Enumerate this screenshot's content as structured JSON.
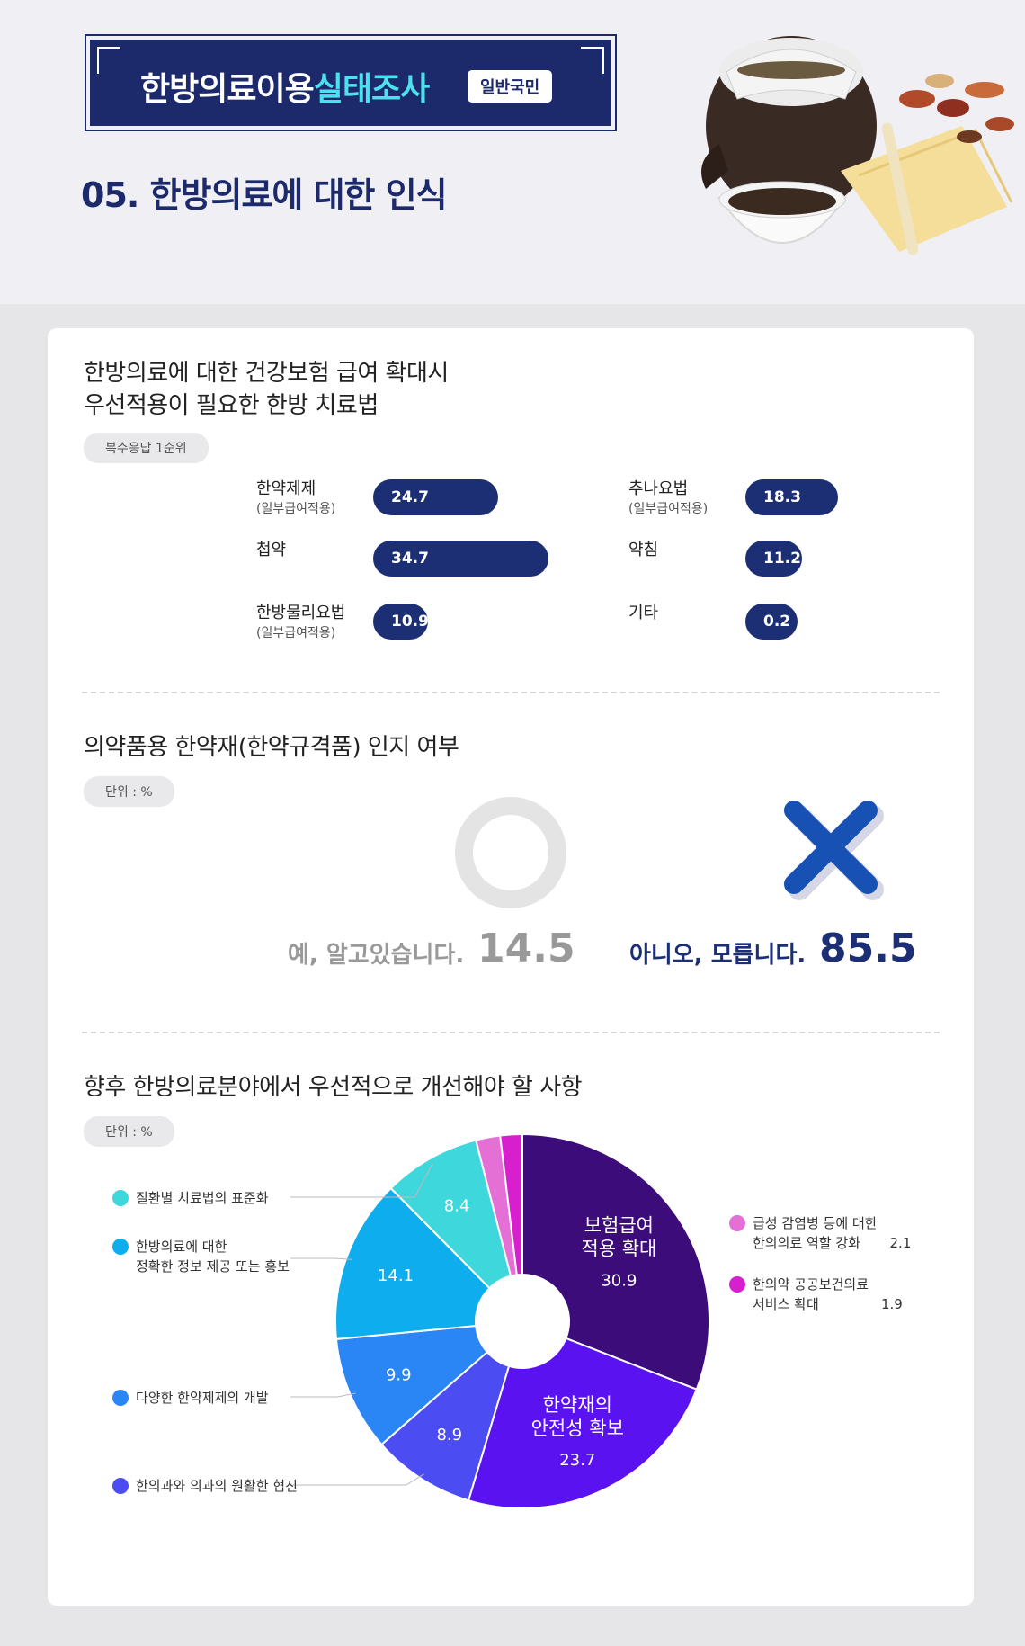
{
  "header": {
    "title_main": "한방의료이용",
    "title_accent": "실태조사",
    "title_tag": "일반국민",
    "section": "05. 한방의료에 대한 인식"
  },
  "colors": {
    "navy": "#1c2a6b",
    "accent": "#4de0ee",
    "bar": "#1c2f74",
    "yes_gray": "#999999",
    "no_blue": "#1c2f74"
  },
  "icons": [
    "circle-o-icon",
    "x-mark-icon"
  ],
  "chart_data": [
    {
      "type": "bar",
      "title_lines": [
        "한방의료에 대한 건강보험 급여 확대시",
        "우선적용이 필요한 한방 치료법"
      ],
      "pill": "복수응답 1순위",
      "xlim": [
        0,
        50
      ],
      "bars": [
        {
          "name": "한약제제",
          "sub": "(일부급여적용)",
          "value": 24.7,
          "label": "24.7"
        },
        {
          "name": "첩약",
          "sub": "",
          "value": 34.7,
          "label": "34.7"
        },
        {
          "name": "한방물리요법",
          "sub": "(일부급여적용)",
          "value": 10.9,
          "label": "10.9"
        },
        {
          "name": "추나요법",
          "sub": "(일부급여적용)",
          "value": 18.3,
          "label": "18.3"
        },
        {
          "name": "약침",
          "sub": "",
          "value": 11.2,
          "label": "11.2"
        },
        {
          "name": "기타",
          "sub": "",
          "value": 0.2,
          "label": "0.2"
        }
      ]
    },
    {
      "type": "table",
      "title": "의약품용 한약재(한약규격품) 인지 여부",
      "unit": "단위 : %",
      "yes": {
        "label": "예, 알고있습니다.",
        "value": "14.5"
      },
      "no": {
        "label": "아니오, 모릅니다.",
        "value": "85.5"
      }
    },
    {
      "type": "pie",
      "title": "향후 한방의료분야에서 우선적으로 개선해야 할 사항",
      "unit": "단위 : %",
      "slices": [
        {
          "name": "보험급여 적용 확대",
          "inner_lines": [
            "보험급여",
            "적용 확대"
          ],
          "value": 30.9,
          "label": "30.9",
          "color": "#3c0d7a"
        },
        {
          "name": "한약재의 안전성 확보",
          "inner_lines": [
            "한약재의",
            "안전성 확보"
          ],
          "value": 23.7,
          "label": "23.7",
          "color": "#5b12f0"
        },
        {
          "name": "한의과와 의과의 원활한 협진",
          "inner_lines": [],
          "value": 8.9,
          "label": "8.9",
          "color": "#4b4cf2"
        },
        {
          "name": "다양한 한약제제의 개발",
          "inner_lines": [],
          "value": 9.9,
          "label": "9.9",
          "color": "#2a86f5"
        },
        {
          "name": "한방의료에 대한\n정확한 정보 제공 또는 홍보",
          "inner_lines": [],
          "value": 14.1,
          "label": "14.1",
          "color": "#0eaeee"
        },
        {
          "name": "질환별 치료법의 표준화",
          "inner_lines": [],
          "value": 8.4,
          "label": "8.4",
          "color": "#3ed8dc"
        },
        {
          "name": "급성 감염병 등에 대한\n한의의료 역할 강화",
          "inner_lines": [],
          "value": 2.1,
          "label": "2.1",
          "color": "#e470d6"
        },
        {
          "name": "한의약 공공보건의료\n서비스 확대",
          "inner_lines": [],
          "value": 1.9,
          "label": "1.9",
          "color": "#d81fce"
        }
      ]
    }
  ]
}
